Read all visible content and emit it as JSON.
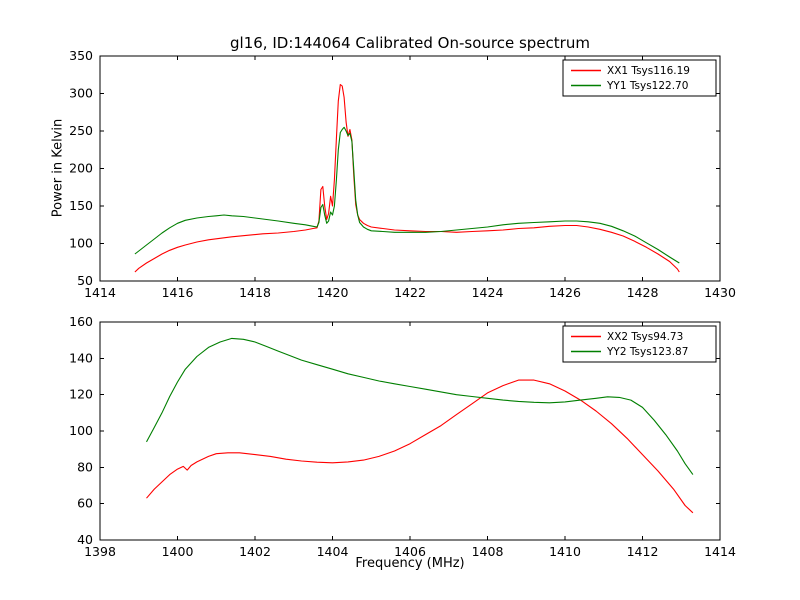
{
  "title": "gl16, ID:144064 Calibrated On-source spectrum",
  "xlabel": "Frequency (MHz)",
  "ylabel": "Power in Kelvin",
  "colors": {
    "red": "#ff0000",
    "green": "#007f00",
    "axes": "#000000",
    "background": "#ffffff"
  },
  "chart_data": [
    {
      "type": "line",
      "name": "top-spectrum",
      "title": "gl16, ID:144064 Calibrated On-source spectrum",
      "xlabel": "",
      "ylabel": "Power in Kelvin",
      "xlim": [
        1414,
        1430
      ],
      "ylim": [
        50,
        350
      ],
      "xticks": [
        1414,
        1416,
        1418,
        1420,
        1422,
        1424,
        1426,
        1428,
        1430
      ],
      "yticks": [
        50,
        100,
        150,
        200,
        250,
        300,
        350
      ],
      "grid": false,
      "legend_position": "upper right",
      "series": [
        {
          "name": "XX1 Tsys116.19",
          "color": "#ff0000",
          "points": [
            [
              1414.9,
              62
            ],
            [
              1415.0,
              67
            ],
            [
              1415.2,
              74
            ],
            [
              1415.4,
              80
            ],
            [
              1415.6,
              86
            ],
            [
              1415.8,
              91
            ],
            [
              1416.0,
              95
            ],
            [
              1416.2,
              98
            ],
            [
              1416.5,
              102
            ],
            [
              1416.8,
              105
            ],
            [
              1417.1,
              107
            ],
            [
              1417.4,
              109
            ],
            [
              1417.8,
              111
            ],
            [
              1418.2,
              113
            ],
            [
              1418.6,
              114
            ],
            [
              1419.0,
              116
            ],
            [
              1419.3,
              118
            ],
            [
              1419.5,
              120
            ],
            [
              1419.6,
              121
            ],
            [
              1419.65,
              130
            ],
            [
              1419.7,
              172
            ],
            [
              1419.75,
              176
            ],
            [
              1419.8,
              150
            ],
            [
              1419.85,
              132
            ],
            [
              1419.9,
              140
            ],
            [
              1419.95,
              163
            ],
            [
              1420.0,
              150
            ],
            [
              1420.05,
              185
            ],
            [
              1420.1,
              240
            ],
            [
              1420.15,
              290
            ],
            [
              1420.2,
              312
            ],
            [
              1420.25,
              310
            ],
            [
              1420.3,
              295
            ],
            [
              1420.35,
              262
            ],
            [
              1420.4,
              243
            ],
            [
              1420.45,
              252
            ],
            [
              1420.5,
              238
            ],
            [
              1420.55,
              190
            ],
            [
              1420.6,
              152
            ],
            [
              1420.65,
              138
            ],
            [
              1420.7,
              132
            ],
            [
              1420.8,
              127
            ],
            [
              1420.9,
              124
            ],
            [
              1421.0,
              122
            ],
            [
              1421.3,
              120
            ],
            [
              1421.6,
              118
            ],
            [
              1422.0,
              117
            ],
            [
              1422.4,
              116
            ],
            [
              1422.8,
              116
            ],
            [
              1423.2,
              115
            ],
            [
              1423.6,
              116
            ],
            [
              1424.0,
              117
            ],
            [
              1424.4,
              118
            ],
            [
              1424.8,
              120
            ],
            [
              1425.2,
              121
            ],
            [
              1425.6,
              123
            ],
            [
              1426.0,
              124
            ],
            [
              1426.3,
              124
            ],
            [
              1426.6,
              122
            ],
            [
              1426.9,
              119
            ],
            [
              1427.2,
              115
            ],
            [
              1427.5,
              110
            ],
            [
              1427.8,
              103
            ],
            [
              1428.1,
              95
            ],
            [
              1428.4,
              86
            ],
            [
              1428.7,
              76
            ],
            [
              1428.9,
              66
            ],
            [
              1428.95,
              62
            ]
          ]
        },
        {
          "name": "YY1 Tsys122.70",
          "color": "#007f00",
          "points": [
            [
              1414.9,
              86
            ],
            [
              1415.0,
              90
            ],
            [
              1415.2,
              98
            ],
            [
              1415.4,
              106
            ],
            [
              1415.6,
              114
            ],
            [
              1415.8,
              121
            ],
            [
              1416.0,
              127
            ],
            [
              1416.2,
              131
            ],
            [
              1416.5,
              134
            ],
            [
              1416.8,
              136
            ],
            [
              1417.0,
              137
            ],
            [
              1417.2,
              138
            ],
            [
              1417.4,
              137
            ],
            [
              1417.7,
              136
            ],
            [
              1418.0,
              134
            ],
            [
              1418.3,
              132
            ],
            [
              1418.6,
              130
            ],
            [
              1419.0,
              127
            ],
            [
              1419.3,
              125
            ],
            [
              1419.5,
              123
            ],
            [
              1419.6,
              122
            ],
            [
              1419.65,
              128
            ],
            [
              1419.7,
              148
            ],
            [
              1419.75,
              152
            ],
            [
              1419.8,
              138
            ],
            [
              1419.85,
              127
            ],
            [
              1419.9,
              130
            ],
            [
              1419.95,
              142
            ],
            [
              1420.0,
              138
            ],
            [
              1420.05,
              150
            ],
            [
              1420.1,
              185
            ],
            [
              1420.15,
              225
            ],
            [
              1420.2,
              248
            ],
            [
              1420.25,
              252
            ],
            [
              1420.3,
              255
            ],
            [
              1420.35,
              250
            ],
            [
              1420.4,
              244
            ],
            [
              1420.45,
              247
            ],
            [
              1420.5,
              236
            ],
            [
              1420.55,
              198
            ],
            [
              1420.6,
              158
            ],
            [
              1420.65,
              138
            ],
            [
              1420.7,
              128
            ],
            [
              1420.8,
              122
            ],
            [
              1420.9,
              119
            ],
            [
              1421.0,
              117
            ],
            [
              1421.3,
              116
            ],
            [
              1421.6,
              115
            ],
            [
              1422.0,
              115
            ],
            [
              1422.4,
              115
            ],
            [
              1422.8,
              116
            ],
            [
              1423.2,
              118
            ],
            [
              1423.6,
              120
            ],
            [
              1424.0,
              122
            ],
            [
              1424.4,
              125
            ],
            [
              1424.8,
              127
            ],
            [
              1425.2,
              128
            ],
            [
              1425.6,
              129
            ],
            [
              1426.0,
              130
            ],
            [
              1426.3,
              130
            ],
            [
              1426.6,
              129
            ],
            [
              1426.9,
              127
            ],
            [
              1427.2,
              123
            ],
            [
              1427.5,
              117
            ],
            [
              1427.8,
              110
            ],
            [
              1428.1,
              101
            ],
            [
              1428.4,
              92
            ],
            [
              1428.7,
              82
            ],
            [
              1428.95,
              74
            ]
          ]
        }
      ]
    },
    {
      "type": "line",
      "name": "bottom-spectrum",
      "title": "",
      "xlabel": "Frequency (MHz)",
      "ylabel": "",
      "xlim": [
        1398,
        1414
      ],
      "ylim": [
        40,
        160
      ],
      "xticks": [
        1398,
        1400,
        1402,
        1404,
        1406,
        1408,
        1410,
        1412,
        1414
      ],
      "yticks": [
        40,
        60,
        80,
        100,
        120,
        140,
        160
      ],
      "grid": false,
      "legend_position": "upper right",
      "series": [
        {
          "name": "XX2 Tsys94.73",
          "color": "#ff0000",
          "points": [
            [
              1399.2,
              63
            ],
            [
              1399.4,
              68
            ],
            [
              1399.6,
              72
            ],
            [
              1399.8,
              76
            ],
            [
              1400.0,
              79
            ],
            [
              1400.15,
              80.5
            ],
            [
              1400.25,
              78.5
            ],
            [
              1400.35,
              81
            ],
            [
              1400.5,
              83
            ],
            [
              1400.8,
              86
            ],
            [
              1401.0,
              87.5
            ],
            [
              1401.3,
              88
            ],
            [
              1401.6,
              88
            ],
            [
              1402.0,
              87
            ],
            [
              1402.4,
              86
            ],
            [
              1402.8,
              84.5
            ],
            [
              1403.2,
              83.5
            ],
            [
              1403.6,
              82.8
            ],
            [
              1404.0,
              82.5
            ],
            [
              1404.4,
              83
            ],
            [
              1404.8,
              84
            ],
            [
              1405.2,
              86
            ],
            [
              1405.6,
              89
            ],
            [
              1406.0,
              93
            ],
            [
              1406.4,
              98
            ],
            [
              1406.8,
              103
            ],
            [
              1407.2,
              109
            ],
            [
              1407.6,
              115
            ],
            [
              1408.0,
              121
            ],
            [
              1408.4,
              125
            ],
            [
              1408.8,
              128
            ],
            [
              1409.2,
              128
            ],
            [
              1409.6,
              126
            ],
            [
              1410.0,
              122
            ],
            [
              1410.4,
              117
            ],
            [
              1410.8,
              111
            ],
            [
              1411.2,
              104
            ],
            [
              1411.6,
              96
            ],
            [
              1412.0,
              87
            ],
            [
              1412.4,
              78
            ],
            [
              1412.8,
              68
            ],
            [
              1413.1,
              59
            ],
            [
              1413.3,
              55
            ]
          ]
        },
        {
          "name": "YY2 Tsys123.87",
          "color": "#007f00",
          "points": [
            [
              1399.2,
              94
            ],
            [
              1399.4,
              102
            ],
            [
              1399.6,
              110
            ],
            [
              1399.8,
              119
            ],
            [
              1400.0,
              127
            ],
            [
              1400.2,
              134
            ],
            [
              1400.5,
              141
            ],
            [
              1400.8,
              146
            ],
            [
              1401.1,
              149
            ],
            [
              1401.4,
              151
            ],
            [
              1401.7,
              150.5
            ],
            [
              1402.0,
              149
            ],
            [
              1402.3,
              146.5
            ],
            [
              1402.6,
              144
            ],
            [
              1402.9,
              141.5
            ],
            [
              1403.2,
              139
            ],
            [
              1403.6,
              136.5
            ],
            [
              1404.0,
              134
            ],
            [
              1404.4,
              131.5
            ],
            [
              1404.8,
              129.5
            ],
            [
              1405.2,
              127.5
            ],
            [
              1405.6,
              126
            ],
            [
              1406.0,
              124.5
            ],
            [
              1406.4,
              123
            ],
            [
              1406.8,
              121.5
            ],
            [
              1407.2,
              120
            ],
            [
              1407.6,
              119
            ],
            [
              1408.0,
              118
            ],
            [
              1408.4,
              117
            ],
            [
              1408.8,
              116.3
            ],
            [
              1409.2,
              115.8
            ],
            [
              1409.6,
              115.5
            ],
            [
              1410.0,
              116
            ],
            [
              1410.4,
              117
            ],
            [
              1410.8,
              118
            ],
            [
              1411.1,
              118.8
            ],
            [
              1411.4,
              118.5
            ],
            [
              1411.7,
              117
            ],
            [
              1412.0,
              113
            ],
            [
              1412.3,
              106
            ],
            [
              1412.6,
              98
            ],
            [
              1412.9,
              89
            ],
            [
              1413.1,
              82
            ],
            [
              1413.3,
              76
            ]
          ]
        }
      ]
    }
  ]
}
